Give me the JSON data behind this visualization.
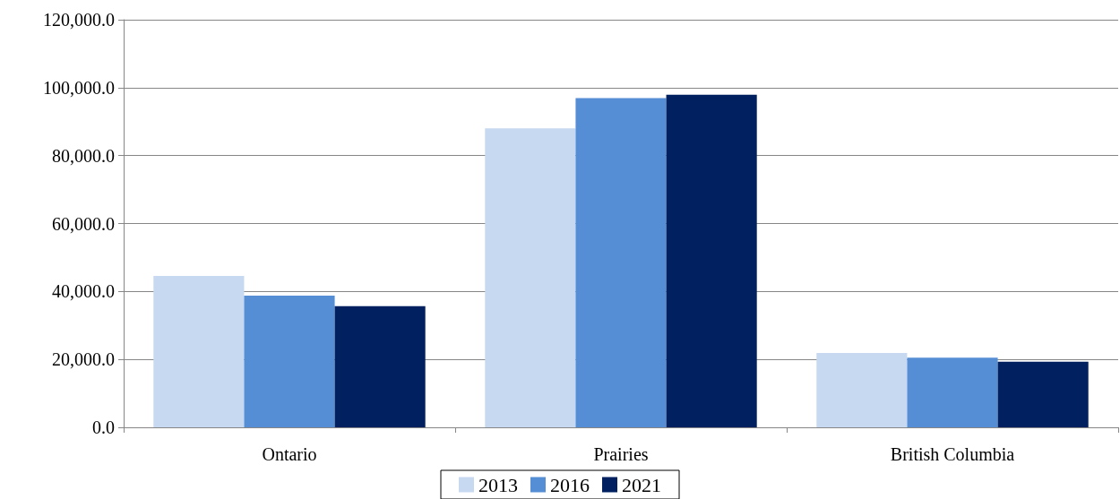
{
  "chart_data": {
    "type": "bar",
    "categories": [
      "Ontario",
      "Prairies",
      "British Columbia"
    ],
    "series": [
      {
        "name": "2013",
        "color": "#c6d9f1",
        "values": [
          44600,
          88000,
          21900
        ]
      },
      {
        "name": "2016",
        "color": "#558ed5",
        "values": [
          38800,
          96900,
          20500
        ]
      },
      {
        "name": "2021",
        "color": "#002060",
        "values": [
          35700,
          97900,
          19300
        ]
      }
    ],
    "ylim": [
      0,
      120000
    ],
    "yticks": [
      {
        "value": 0,
        "label": "0.0"
      },
      {
        "value": 20000,
        "label": "20,000.0"
      },
      {
        "value": 40000,
        "label": "40,000.0"
      },
      {
        "value": 60000,
        "label": "60,000.0"
      },
      {
        "value": 80000,
        "label": "80,000.0"
      },
      {
        "value": 100000,
        "label": "100,000.0"
      },
      {
        "value": 120000,
        "label": "120,000.0"
      }
    ],
    "grid": "y",
    "legend": "bottom"
  }
}
